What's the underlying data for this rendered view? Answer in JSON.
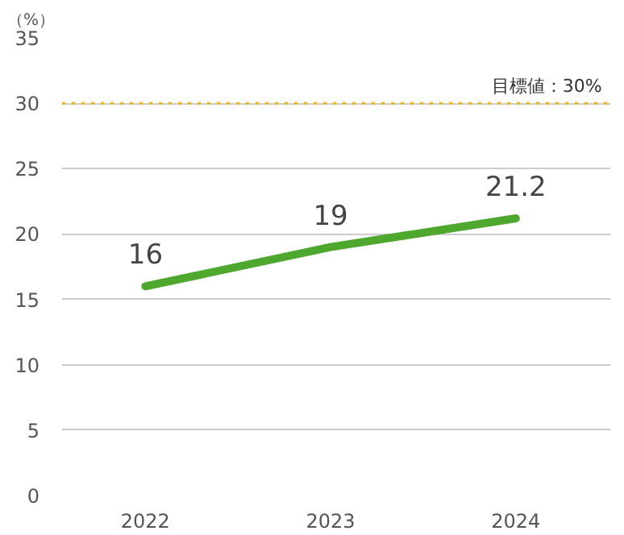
{
  "chart_data": {
    "type": "line",
    "ylabel": "（%）",
    "categories": [
      "2022",
      "2023",
      "2024"
    ],
    "series": [
      {
        "color": "#4fa82e",
        "values": [
          16,
          19,
          21.2
        ]
      }
    ],
    "ylim": [
      0,
      35
    ],
    "yticks": [
      0,
      5,
      10,
      15,
      20,
      25,
      30,
      35
    ],
    "grid": "y",
    "data_labels": true,
    "marker": "none",
    "line_style": "solid",
    "ref_lines": [
      {
        "axis": "y",
        "value": 30,
        "label": "目標値：30%",
        "color": "#f5b400",
        "line_style": "dotted"
      }
    ]
  }
}
